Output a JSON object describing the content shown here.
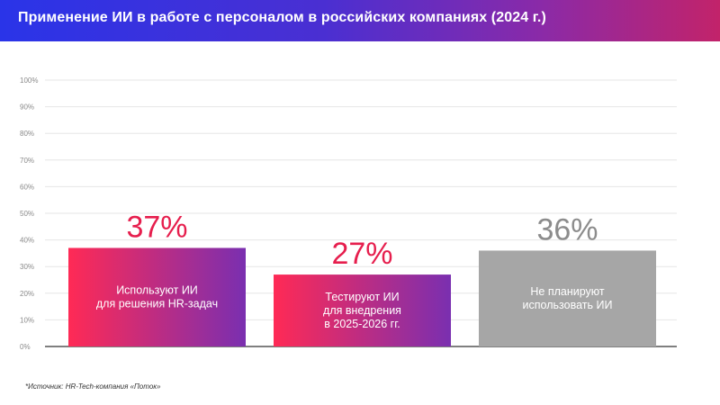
{
  "header": {
    "title": "Применение ИИ в работе с персоналом в российских компаниях (2024 г.)"
  },
  "source": "*Источник: HR-Tech-компания «Поток»",
  "colors": {
    "header_gradient": [
      "#2a34e8",
      "#8a2aa8",
      "#c2236a"
    ],
    "bar_gradient_start": "#ff2a55",
    "bar_gradient_end": "#7a2fb0",
    "bar_gray": "#a6a6a6",
    "value_red": "#e61e4d",
    "value_gray": "#8c8c8c"
  },
  "chart_data": {
    "type": "bar",
    "categories": [
      [
        "Используют ИИ",
        "для решения HR-задач"
      ],
      [
        "Тестируют ИИ",
        "для внедрения",
        "в 2025-2026 гг."
      ],
      [
        "Не планируют",
        "использовать ИИ"
      ]
    ],
    "values": [
      37,
      27,
      36
    ],
    "value_labels": [
      "37%",
      "27%",
      "36%"
    ],
    "styles": [
      "gradient",
      "gradient",
      "gray"
    ],
    "y_ticks": [
      "0%",
      "10%",
      "20%",
      "30%",
      "40%",
      "50%",
      "60%",
      "70%",
      "80%",
      "90%",
      "100%"
    ],
    "ylim": [
      0,
      100
    ],
    "grid": true
  }
}
